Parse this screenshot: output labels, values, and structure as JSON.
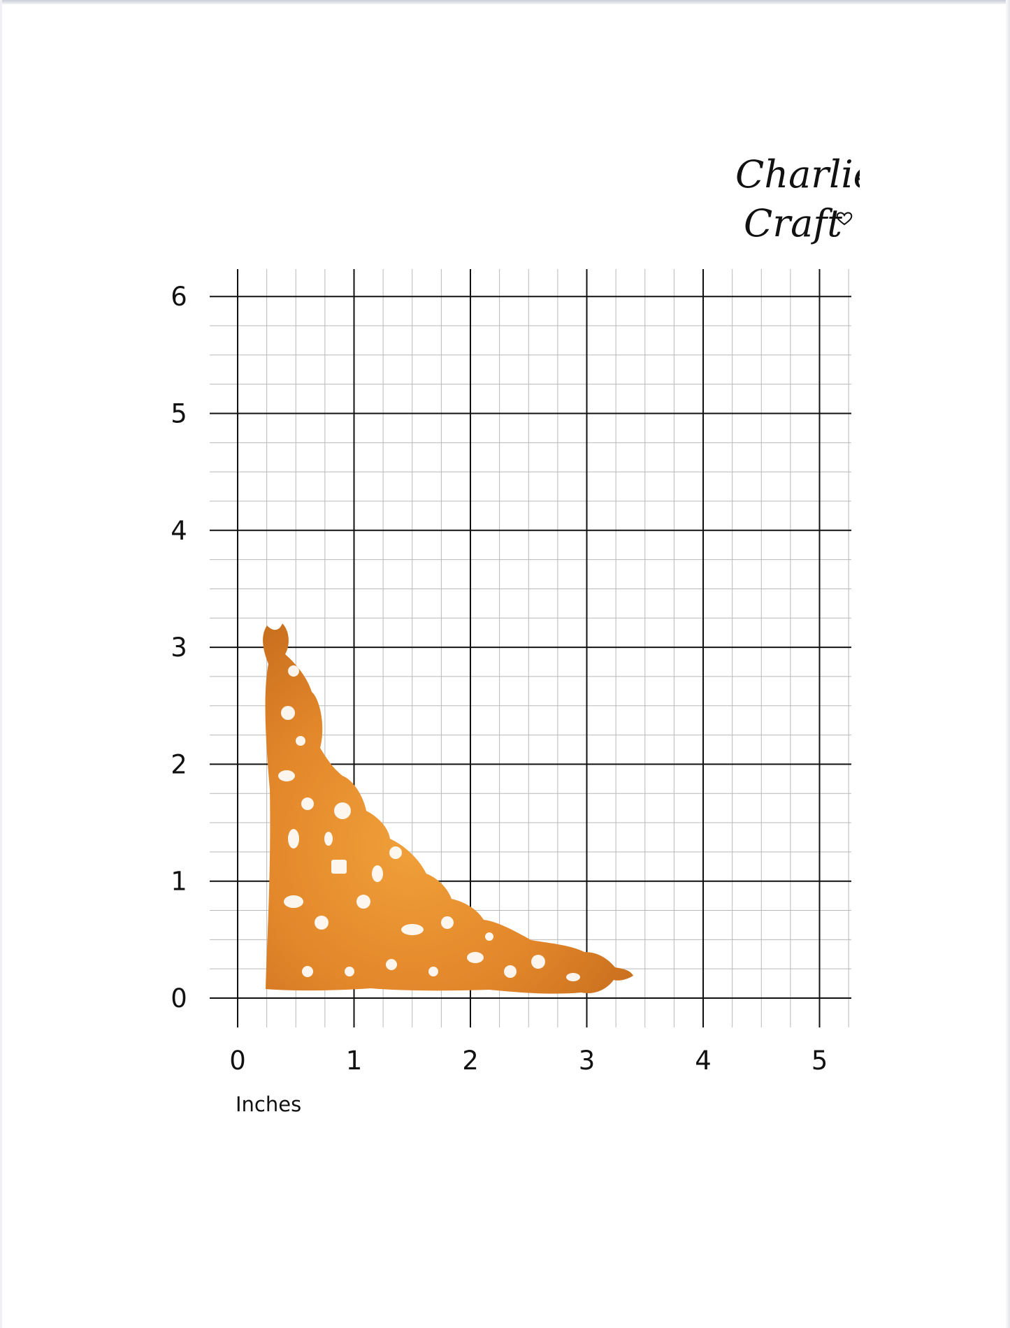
{
  "brand": {
    "line1": "Charlie",
    "line2": "Craft"
  },
  "chart_data": {
    "type": "measurement-grid",
    "xlabel": "Inches",
    "x_ticks": [
      "0",
      "1",
      "2",
      "3",
      "4",
      "5"
    ],
    "y_ticks": [
      "0",
      "1",
      "2",
      "3",
      "4",
      "5",
      "6"
    ],
    "xlim": [
      0,
      5
    ],
    "ylim": [
      0,
      6
    ],
    "minor_divisions_per_inch": 4,
    "object": {
      "description": "orange filigree corner die-cut",
      "color": "#e08a2a",
      "width_in": 3.4,
      "height_in": 3.15
    }
  }
}
